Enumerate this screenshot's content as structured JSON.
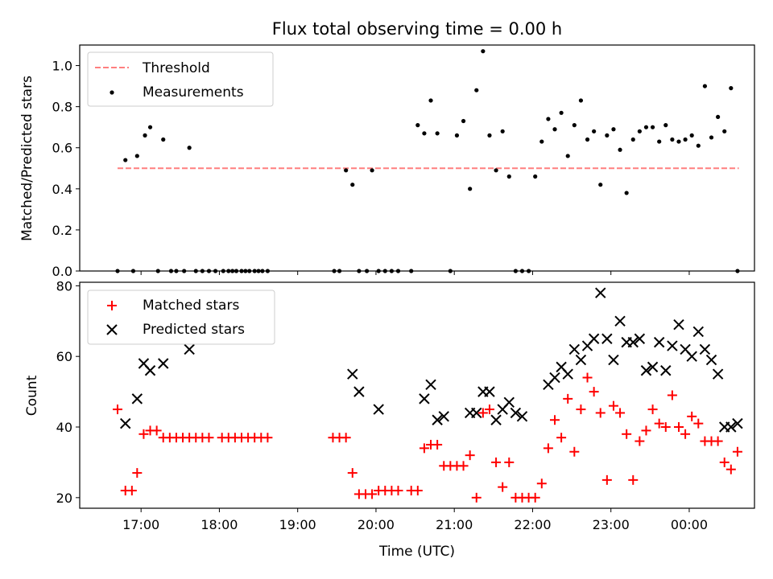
{
  "figure": {
    "title": "Flux total observing time = 0.00 h",
    "xlabel": "Time (UTC)"
  },
  "chart_data": [
    {
      "type": "scatter",
      "title": "Flux total observing time = 0.00 h",
      "xlabel": "",
      "ylabel": "Matched/Predicted stars",
      "ylim": [
        0,
        1.1
      ],
      "yticks": [
        0.0,
        0.2,
        0.4,
        0.6,
        0.8,
        1.0
      ],
      "ytick_labels": [
        "0.0",
        "0.2",
        "0.4",
        "0.6",
        "0.8",
        "1.0"
      ],
      "legend_position": "top-left",
      "threshold": {
        "name": "Threshold",
        "value": 0.5,
        "x_range": [
          "16:42",
          "24:38"
        ],
        "color": "#ff7f7f",
        "style": "dashed"
      },
      "series": [
        {
          "name": "Measurements",
          "marker": "dot",
          "color": "#000000",
          "x": [
            "16:42",
            "16:48",
            "16:54",
            "16:57",
            "17:03",
            "17:07",
            "17:13",
            "17:17",
            "17:23",
            "17:27",
            "17:33",
            "17:37",
            "17:42",
            "17:47",
            "17:52",
            "17:57",
            "18:03",
            "18:07",
            "18:10",
            "18:13",
            "18:17",
            "18:20",
            "18:23",
            "18:27",
            "18:30",
            "18:33",
            "18:37",
            "19:28",
            "19:32",
            "19:37",
            "19:42",
            "19:47",
            "19:53",
            "19:57",
            "20:02",
            "20:07",
            "20:12",
            "20:17",
            "20:27",
            "20:32",
            "20:37",
            "20:42",
            "20:47",
            "20:57",
            "21:02",
            "21:07",
            "21:12",
            "21:17",
            "21:22",
            "21:27",
            "21:32",
            "21:37",
            "21:42",
            "21:47",
            "21:52",
            "21:57",
            "22:02",
            "22:07",
            "22:12",
            "22:17",
            "22:22",
            "22:27",
            "22:32",
            "22:37",
            "22:42",
            "22:47",
            "22:52",
            "22:57",
            "23:02",
            "23:07",
            "23:12",
            "23:17",
            "23:22",
            "23:27",
            "23:32",
            "23:37",
            "23:42",
            "23:47",
            "23:52",
            "23:57",
            "24:02",
            "24:07",
            "24:12",
            "24:17",
            "24:22",
            "24:27",
            "24:32",
            "24:37"
          ],
          "y": [
            0.0,
            0.54,
            0.0,
            0.56,
            0.66,
            0.7,
            0.0,
            0.64,
            0.0,
            0.0,
            0.0,
            0.6,
            0.0,
            0.0,
            0.0,
            0.0,
            0.0,
            0.0,
            0.0,
            0.0,
            0.0,
            0.0,
            0.0,
            0.0,
            0.0,
            0.0,
            0.0,
            0.0,
            0.0,
            0.49,
            0.42,
            0.0,
            0.0,
            0.49,
            0.0,
            0.0,
            0.0,
            0.0,
            0.0,
            0.71,
            0.67,
            0.83,
            0.67,
            0.0,
            0.66,
            0.73,
            0.4,
            0.88,
            1.07,
            0.66,
            0.49,
            0.68,
            0.46,
            0.0,
            0.0,
            0.0,
            0.46,
            0.63,
            0.74,
            0.69,
            0.77,
            0.56,
            0.71,
            0.83,
            0.64,
            0.68,
            0.42,
            0.66,
            0.69,
            0.59,
            0.38,
            0.64,
            0.68,
            0.7,
            0.7,
            0.63,
            0.71,
            0.64,
            0.63,
            0.64,
            0.66,
            0.61,
            0.9,
            0.65,
            0.75,
            0.68,
            0.89,
            0.0
          ]
        }
      ]
    },
    {
      "type": "scatter",
      "xlabel": "Time (UTC)",
      "ylabel": "Count",
      "ylim": [
        17,
        81
      ],
      "yticks": [
        20,
        40,
        60,
        80
      ],
      "ytick_labels": [
        "20",
        "40",
        "60",
        "80"
      ],
      "x_ticks": [
        "17:00",
        "18:00",
        "19:00",
        "20:00",
        "21:00",
        "22:00",
        "23:00",
        "00:00"
      ],
      "legend_position": "top-left",
      "series": [
        {
          "name": "Matched stars",
          "marker": "plus",
          "color": "#ff0000",
          "x": [
            "16:42",
            "16:48",
            "16:53",
            "16:57",
            "17:02",
            "17:07",
            "17:12",
            "17:17",
            "17:22",
            "17:27",
            "17:32",
            "17:37",
            "17:42",
            "17:47",
            "17:52",
            "18:02",
            "18:07",
            "18:12",
            "18:17",
            "18:22",
            "18:27",
            "18:32",
            "18:37",
            "19:27",
            "19:32",
            "19:37",
            "19:42",
            "19:47",
            "19:52",
            "19:57",
            "20:02",
            "20:07",
            "20:12",
            "20:17",
            "20:27",
            "20:32",
            "20:37",
            "20:42",
            "20:47",
            "20:52",
            "20:57",
            "21:02",
            "21:07",
            "21:12",
            "21:17",
            "21:22",
            "21:27",
            "21:32",
            "21:37",
            "21:42",
            "21:47",
            "21:52",
            "21:57",
            "22:02",
            "22:07",
            "22:12",
            "22:17",
            "22:22",
            "22:27",
            "22:32",
            "22:37",
            "22:42",
            "22:47",
            "22:52",
            "22:57",
            "23:02",
            "23:07",
            "23:12",
            "23:17",
            "23:22",
            "23:27",
            "23:32",
            "23:37",
            "23:42",
            "23:47",
            "23:52",
            "23:57",
            "24:02",
            "24:07",
            "24:12",
            "24:17",
            "24:22",
            "24:27",
            "24:32",
            "24:37"
          ],
          "y": [
            45,
            22,
            22,
            27,
            38,
            39,
            39,
            37,
            37,
            37,
            37,
            37,
            37,
            37,
            37,
            37,
            37,
            37,
            37,
            37,
            37,
            37,
            37,
            37,
            37,
            37,
            27,
            21,
            21,
            21,
            22,
            22,
            22,
            22,
            22,
            22,
            34,
            35,
            35,
            29,
            29,
            29,
            29,
            32,
            20,
            44,
            45,
            30,
            23,
            30,
            20,
            20,
            20,
            20,
            24,
            34,
            42,
            37,
            48,
            33,
            45,
            54,
            50,
            44,
            25,
            46,
            44,
            38,
            25,
            36,
            39,
            45,
            41,
            40,
            49,
            40,
            38,
            43,
            41,
            36,
            36,
            36,
            30,
            28,
            33
          ]
        },
        {
          "name": "Predicted stars",
          "marker": "x",
          "color": "#000000",
          "x": [
            "16:48",
            "16:57",
            "17:02",
            "17:07",
            "17:17",
            "17:37",
            "19:42",
            "19:47",
            "20:02",
            "20:37",
            "20:42",
            "20:47",
            "20:52",
            "21:12",
            "21:17",
            "21:22",
            "21:27",
            "21:32",
            "21:37",
            "21:42",
            "21:47",
            "21:52",
            "22:12",
            "22:17",
            "22:22",
            "22:27",
            "22:32",
            "22:37",
            "22:42",
            "22:47",
            "22:52",
            "22:57",
            "23:02",
            "23:07",
            "23:12",
            "23:17",
            "23:22",
            "23:27",
            "23:32",
            "23:37",
            "23:42",
            "23:47",
            "23:52",
            "23:57",
            "24:02",
            "24:07",
            "24:12",
            "24:17",
            "24:22",
            "24:27",
            "24:32",
            "24:37"
          ],
          "y": [
            41,
            48,
            58,
            56,
            58,
            62,
            55,
            50,
            45,
            48,
            52,
            42,
            43,
            44,
            44,
            50,
            50,
            42,
            45,
            47,
            44,
            43,
            52,
            54,
            57,
            55,
            62,
            59,
            63,
            65,
            78,
            65,
            59,
            70,
            64,
            64,
            65,
            56,
            57,
            64,
            56,
            63,
            69,
            62,
            60,
            67,
            62,
            59,
            55,
            40,
            40,
            41
          ]
        }
      ]
    }
  ]
}
